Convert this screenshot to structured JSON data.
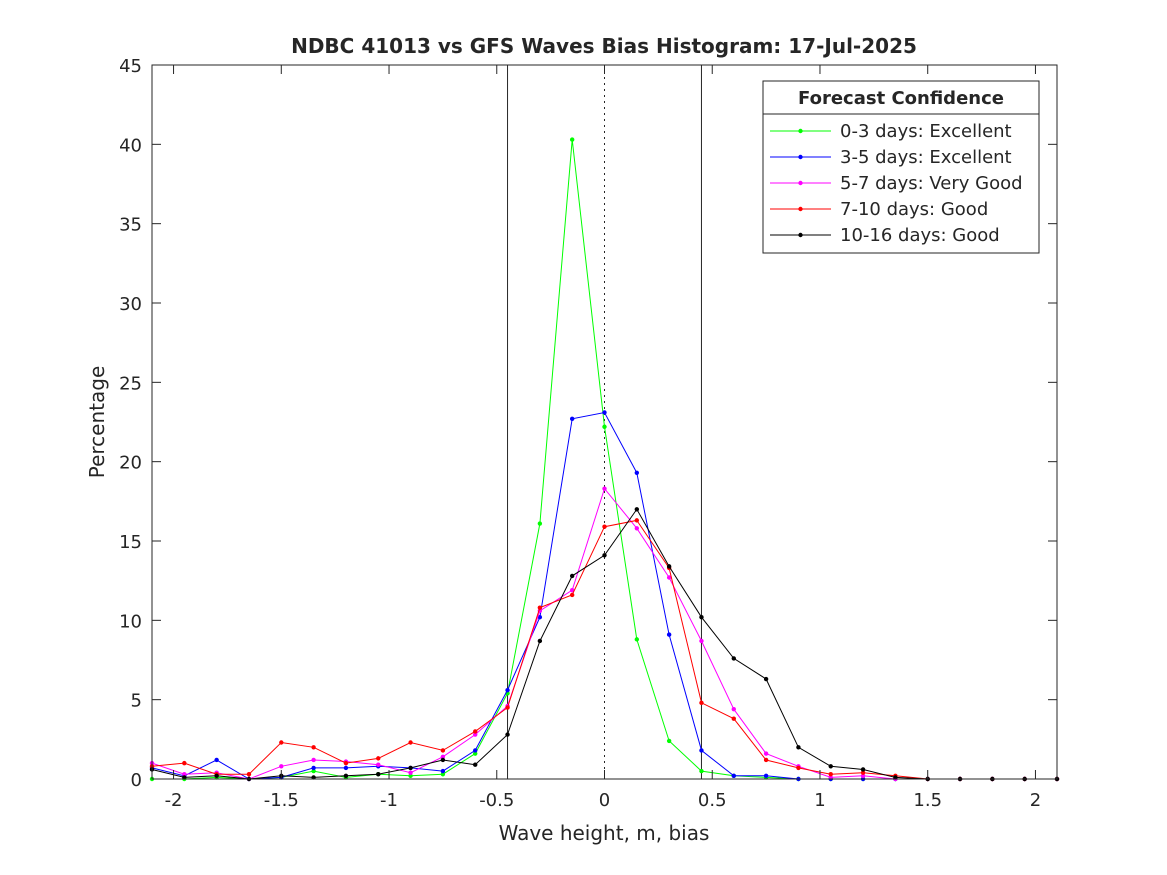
{
  "chart_data": {
    "type": "line",
    "title": "NDBC 41013 vs GFS Waves Bias Histogram: 17-Jul-2025",
    "xlabel": "Wave height, m, bias",
    "ylabel": "Percentage",
    "xlim": [
      -2.1,
      2.1
    ],
    "ylim": [
      0,
      45
    ],
    "xticks": [
      -2,
      -1.5,
      -1,
      -0.5,
      0,
      0.5,
      1,
      1.5,
      2
    ],
    "xtick_labels": [
      "-2",
      "-1.5",
      "-1",
      "-0.5",
      "0",
      "0.5",
      "1",
      "1.5",
      "2"
    ],
    "yticks": [
      0,
      5,
      10,
      15,
      20,
      25,
      30,
      35,
      40,
      45
    ],
    "ytick_labels": [
      "0",
      "5",
      "10",
      "15",
      "20",
      "25",
      "30",
      "35",
      "40",
      "45"
    ],
    "grid": false,
    "legend_title": "Forecast Confidence",
    "legend_position": "top-right",
    "reference_lines": [
      {
        "x": -0.45,
        "style": "solid"
      },
      {
        "x": 0,
        "style": "dotted"
      },
      {
        "x": 0.45,
        "style": "solid"
      }
    ],
    "x": [
      -2.1,
      -1.95,
      -1.8,
      -1.65,
      -1.5,
      -1.35,
      -1.2,
      -1.05,
      -0.9,
      -0.75,
      -0.6,
      -0.45,
      -0.3,
      -0.15,
      0,
      0.15,
      0.3,
      0.45,
      0.6,
      0.75,
      0.9,
      1.05,
      1.2,
      1.35,
      1.5,
      1.65,
      1.8,
      1.95,
      2.1
    ],
    "series": [
      {
        "name": "0-3 days: Excellent",
        "color": "#00ff00",
        "values": [
          0,
          0,
          0.1,
          0,
          0.1,
          0.5,
          0.1,
          0.3,
          0.2,
          0.3,
          1.6,
          5.4,
          16.1,
          40.3,
          22.2,
          8.8,
          2.4,
          0.5,
          0.2,
          0.1,
          0,
          0,
          0,
          0,
          0,
          0,
          0,
          0,
          0
        ]
      },
      {
        "name": "3-5 days: Excellent",
        "color": "#0000ff",
        "values": [
          0.7,
          0.2,
          1.2,
          0,
          0.1,
          0.7,
          0.7,
          0.8,
          0.7,
          0.5,
          1.8,
          5.6,
          10.2,
          22.7,
          23.1,
          19.3,
          9.1,
          1.8,
          0.2,
          0.2,
          0,
          0,
          0,
          0,
          0,
          0,
          0,
          0,
          0
        ]
      },
      {
        "name": "5-7 days: Very Good",
        "color": "#ff00ff",
        "values": [
          1.0,
          0.3,
          0.4,
          0,
          0.8,
          1.2,
          1.1,
          0.9,
          0.4,
          1.4,
          2.8,
          4.6,
          10.6,
          11.9,
          18.3,
          15.8,
          12.7,
          8.7,
          4.4,
          1.6,
          0.8,
          0.1,
          0.2,
          0,
          0,
          0,
          0,
          0,
          0
        ]
      },
      {
        "name": "7-10 days: Good",
        "color": "#ff0000",
        "values": [
          0.8,
          1.0,
          0.3,
          0.3,
          2.3,
          2.0,
          1.0,
          1.3,
          2.3,
          1.8,
          3.0,
          4.5,
          10.8,
          11.6,
          15.9,
          16.3,
          13.3,
          4.8,
          3.8,
          1.2,
          0.7,
          0.3,
          0.4,
          0.2,
          0,
          0,
          0,
          0,
          0
        ]
      },
      {
        "name": "10-16 days: Good",
        "color": "#000000",
        "values": [
          0.6,
          0.1,
          0.2,
          0,
          0.2,
          0.1,
          0.2,
          0.3,
          0.7,
          1.2,
          0.9,
          2.8,
          8.7,
          12.8,
          14.1,
          17.0,
          13.4,
          10.2,
          7.6,
          6.3,
          2.0,
          0.8,
          0.6,
          0.1,
          0,
          0,
          0,
          0,
          0
        ]
      }
    ]
  }
}
